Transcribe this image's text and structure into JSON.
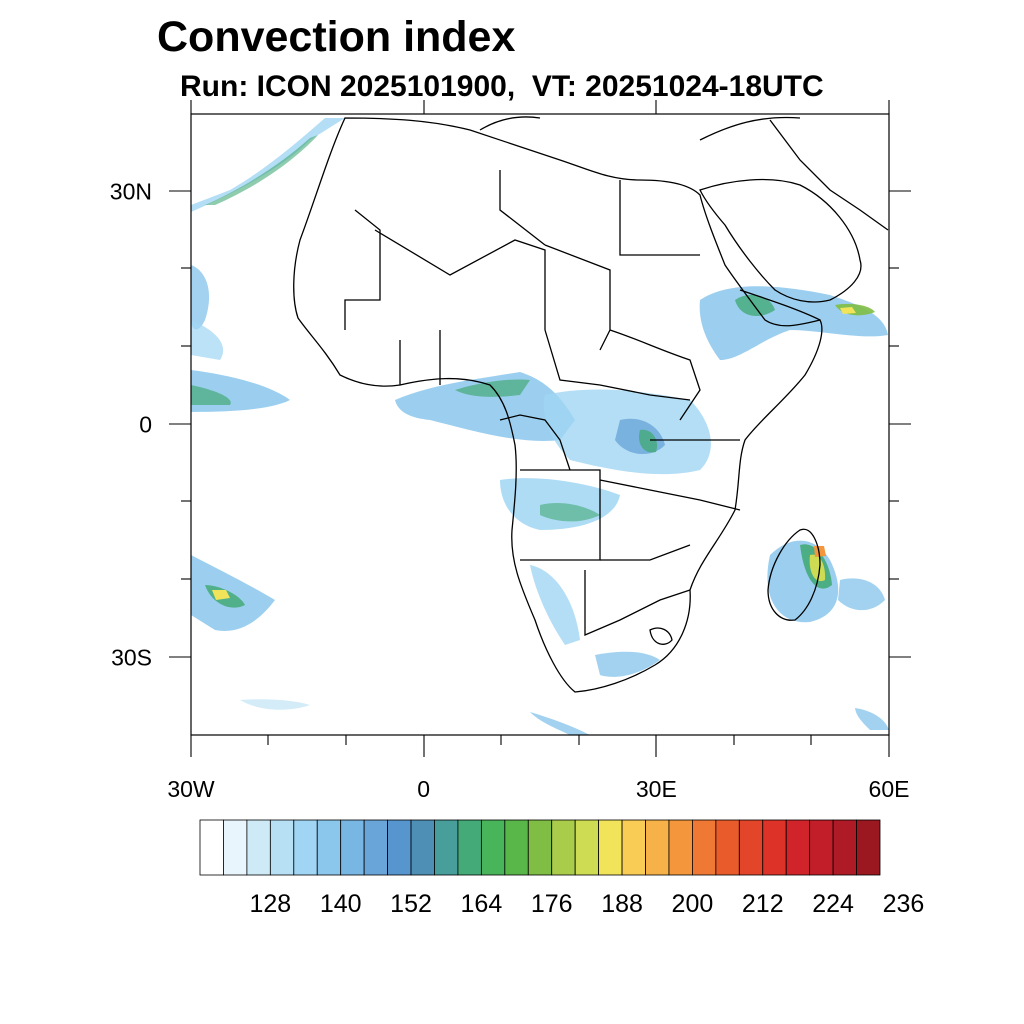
{
  "title": "Convection index",
  "subtitle": "Run: ICON 2025101900,  VT: 20251024-18UTC",
  "axes": {
    "x_ticks": [
      {
        "lon": -30,
        "label": "30W"
      },
      {
        "lon": 0,
        "label": "0"
      },
      {
        "lon": 30,
        "label": "30E"
      },
      {
        "lon": 60,
        "label": "60E"
      }
    ],
    "y_ticks": [
      {
        "lat": 30,
        "label": "30N"
      },
      {
        "lat": 0,
        "label": "0"
      },
      {
        "lat": -30,
        "label": "30S"
      }
    ],
    "lon_range": [
      -30,
      60
    ],
    "lat_range": [
      -40,
      40
    ]
  },
  "colorbar": {
    "colors": [
      "#ffffff",
      "#e8f5fc",
      "#cfeaf7",
      "#b7e0f5",
      "#a0d6f3",
      "#8bc7ec",
      "#78b6e3",
      "#6aa5da",
      "#5695cd",
      "#4d8fb5",
      "#489e9b",
      "#44aa78",
      "#49b55a",
      "#59b649",
      "#7fbd44",
      "#a9cd4a",
      "#cddc52",
      "#f1e45a",
      "#f9cc56",
      "#f6b248",
      "#f4963b",
      "#ef7834",
      "#ea5b2c",
      "#e3452a",
      "#dc3228",
      "#d1242a",
      "#c21e2a",
      "#ae1a25",
      "#9b1820"
    ],
    "labels": [
      "128",
      "140",
      "152",
      "164",
      "176",
      "188",
      "200",
      "212",
      "224",
      "236"
    ]
  }
}
